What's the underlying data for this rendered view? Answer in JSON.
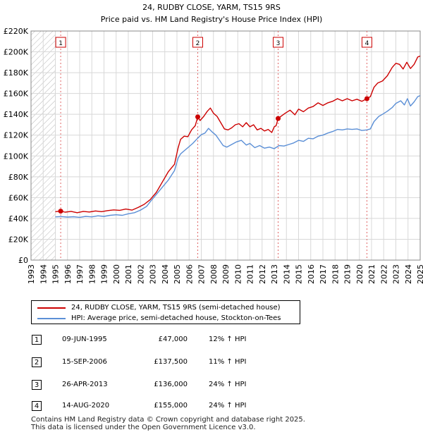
{
  "chart_data": {
    "type": "line",
    "title": "24, RUDBY CLOSE, YARM, TS15 9RS",
    "subtitle": "Price paid vs. HM Land Registry's House Price Index (HPI)",
    "xlim": [
      1993,
      2025
    ],
    "ylim": [
      0,
      220000
    ],
    "x_ticks": [
      1993,
      1994,
      1995,
      1996,
      1997,
      1998,
      1999,
      2000,
      2001,
      2002,
      2003,
      2004,
      2005,
      2006,
      2007,
      2008,
      2009,
      2010,
      2011,
      2012,
      2013,
      2014,
      2015,
      2016,
      2017,
      2018,
      2019,
      2020,
      2021,
      2022,
      2023,
      2024,
      2025
    ],
    "y_ticks": [
      {
        "value": 0,
        "label": "£0"
      },
      {
        "value": 20000,
        "label": "£20K"
      },
      {
        "value": 40000,
        "label": "£40K"
      },
      {
        "value": 60000,
        "label": "£60K"
      },
      {
        "value": 80000,
        "label": "£80K"
      },
      {
        "value": 100000,
        "label": "£100K"
      },
      {
        "value": 120000,
        "label": "£120K"
      },
      {
        "value": 140000,
        "label": "£140K"
      },
      {
        "value": 160000,
        "label": "£160K"
      },
      {
        "value": 180000,
        "label": "£180K"
      },
      {
        "value": 200000,
        "label": "£200K"
      },
      {
        "value": 220000,
        "label": "£220K"
      }
    ],
    "hatched_range_end": 1995.0,
    "grid": true,
    "series": [
      {
        "name": "24, RUDBY CLOSE, YARM, TS15 9RS (semi-detached house)",
        "color": "#cc0000",
        "points": [
          [
            1995.0,
            46500
          ],
          [
            1995.44,
            47000
          ],
          [
            1995.8,
            46000
          ],
          [
            1996.3,
            46800
          ],
          [
            1996.8,
            45500
          ],
          [
            1997.3,
            46800
          ],
          [
            1997.8,
            46200
          ],
          [
            1998.3,
            47200
          ],
          [
            1998.8,
            46500
          ],
          [
            1999.3,
            47500
          ],
          [
            1999.8,
            48200
          ],
          [
            2000.3,
            47800
          ],
          [
            2000.8,
            49000
          ],
          [
            2001.3,
            48000
          ],
          [
            2001.8,
            50500
          ],
          [
            2002.3,
            53500
          ],
          [
            2002.8,
            58000
          ],
          [
            2003.3,
            65000
          ],
          [
            2003.8,
            75000
          ],
          [
            2004.3,
            85000
          ],
          [
            2004.8,
            92000
          ],
          [
            2005.1,
            108000
          ],
          [
            2005.3,
            116000
          ],
          [
            2005.6,
            119000
          ],
          [
            2005.9,
            118500
          ],
          [
            2006.2,
            125000
          ],
          [
            2006.5,
            129000
          ],
          [
            2006.71,
            137500
          ],
          [
            2006.9,
            134000
          ],
          [
            2007.2,
            138000
          ],
          [
            2007.5,
            143000
          ],
          [
            2007.75,
            146000
          ],
          [
            2008.0,
            141000
          ],
          [
            2008.3,
            138000
          ],
          [
            2008.6,
            132000
          ],
          [
            2008.9,
            126000
          ],
          [
            2009.2,
            125000
          ],
          [
            2009.5,
            127000
          ],
          [
            2009.8,
            130000
          ],
          [
            2010.1,
            131000
          ],
          [
            2010.4,
            128000
          ],
          [
            2010.7,
            132000
          ],
          [
            2011.0,
            128000
          ],
          [
            2011.3,
            130000
          ],
          [
            2011.6,
            125000
          ],
          [
            2011.9,
            126500
          ],
          [
            2012.2,
            124000
          ],
          [
            2012.5,
            125500
          ],
          [
            2012.8,
            122500
          ],
          [
            2013.0,
            128000
          ],
          [
            2013.15,
            129000
          ],
          [
            2013.32,
            136000
          ],
          [
            2013.6,
            138500
          ],
          [
            2013.9,
            141000
          ],
          [
            2014.3,
            144000
          ],
          [
            2014.7,
            139500
          ],
          [
            2015.0,
            145000
          ],
          [
            2015.4,
            142500
          ],
          [
            2015.8,
            146000
          ],
          [
            2016.2,
            147500
          ],
          [
            2016.6,
            151000
          ],
          [
            2017.0,
            148500
          ],
          [
            2017.4,
            151000
          ],
          [
            2017.8,
            152500
          ],
          [
            2018.2,
            155000
          ],
          [
            2018.6,
            153000
          ],
          [
            2019.0,
            155000
          ],
          [
            2019.4,
            153000
          ],
          [
            2019.8,
            154500
          ],
          [
            2020.2,
            152500
          ],
          [
            2020.62,
            155000
          ],
          [
            2020.9,
            157000
          ],
          [
            2021.2,
            166000
          ],
          [
            2021.5,
            170000
          ],
          [
            2021.9,
            172000
          ],
          [
            2022.3,
            177000
          ],
          [
            2022.7,
            185000
          ],
          [
            2023.0,
            189000
          ],
          [
            2023.3,
            188000
          ],
          [
            2023.6,
            183500
          ],
          [
            2023.9,
            190000
          ],
          [
            2024.2,
            184000
          ],
          [
            2024.5,
            188000
          ],
          [
            2024.8,
            195000
          ],
          [
            2025.0,
            196000
          ]
        ]
      },
      {
        "name": "HPI: Average price, semi-detached house, Stockton-on-Tees",
        "color": "#5b8fd6",
        "points": [
          [
            1995.0,
            41500
          ],
          [
            1995.5,
            41800
          ],
          [
            1996.0,
            41300
          ],
          [
            1996.5,
            41600
          ],
          [
            1997.0,
            41000
          ],
          [
            1997.5,
            42000
          ],
          [
            1998.0,
            41500
          ],
          [
            1998.5,
            42500
          ],
          [
            1999.0,
            42000
          ],
          [
            1999.5,
            43000
          ],
          [
            2000.0,
            43500
          ],
          [
            2000.5,
            43000
          ],
          [
            2001.0,
            44500
          ],
          [
            2001.5,
            45500
          ],
          [
            2002.0,
            48000
          ],
          [
            2002.5,
            51500
          ],
          [
            2002.8,
            56000
          ],
          [
            2003.3,
            63000
          ],
          [
            2003.8,
            70000
          ],
          [
            2004.3,
            77000
          ],
          [
            2004.8,
            86000
          ],
          [
            2005.1,
            98000
          ],
          [
            2005.3,
            102000
          ],
          [
            2005.6,
            105000
          ],
          [
            2005.9,
            108000
          ],
          [
            2006.3,
            112000
          ],
          [
            2006.7,
            117000
          ],
          [
            2007.0,
            120500
          ],
          [
            2007.3,
            122000
          ],
          [
            2007.6,
            126500
          ],
          [
            2007.9,
            123000
          ],
          [
            2008.2,
            120000
          ],
          [
            2008.5,
            115000
          ],
          [
            2008.8,
            110000
          ],
          [
            2009.1,
            108500
          ],
          [
            2009.5,
            111000
          ],
          [
            2009.9,
            113500
          ],
          [
            2010.3,
            115000
          ],
          [
            2010.7,
            110500
          ],
          [
            2011.0,
            112000
          ],
          [
            2011.4,
            108000
          ],
          [
            2011.8,
            110000
          ],
          [
            2012.2,
            107500
          ],
          [
            2012.6,
            108500
          ],
          [
            2013.0,
            107000
          ],
          [
            2013.4,
            110000
          ],
          [
            2013.8,
            109500
          ],
          [
            2014.2,
            111000
          ],
          [
            2014.6,
            112500
          ],
          [
            2015.0,
            115000
          ],
          [
            2015.4,
            114000
          ],
          [
            2015.8,
            117000
          ],
          [
            2016.2,
            116500
          ],
          [
            2016.6,
            119000
          ],
          [
            2017.0,
            120000
          ],
          [
            2017.4,
            122000
          ],
          [
            2017.8,
            123500
          ],
          [
            2018.2,
            125500
          ],
          [
            2018.6,
            125000
          ],
          [
            2019.0,
            126000
          ],
          [
            2019.4,
            125500
          ],
          [
            2019.8,
            126000
          ],
          [
            2020.2,
            124500
          ],
          [
            2020.62,
            125000
          ],
          [
            2020.9,
            126000
          ],
          [
            2021.2,
            133000
          ],
          [
            2021.6,
            138000
          ],
          [
            2021.9,
            140000
          ],
          [
            2022.3,
            143000
          ],
          [
            2022.7,
            146500
          ],
          [
            2023.0,
            150500
          ],
          [
            2023.4,
            153000
          ],
          [
            2023.7,
            149000
          ],
          [
            2023.95,
            155000
          ],
          [
            2024.2,
            148000
          ],
          [
            2024.5,
            152000
          ],
          [
            2024.8,
            157000
          ],
          [
            2025.0,
            158000
          ]
        ]
      }
    ],
    "sale_markers": [
      {
        "label": "1",
        "x": 1995.44,
        "y": 47000
      },
      {
        "label": "2",
        "x": 2006.71,
        "y": 137500
      },
      {
        "label": "3",
        "x": 2013.32,
        "y": 136000
      },
      {
        "label": "4",
        "x": 2020.62,
        "y": 155000
      }
    ]
  },
  "legend": {
    "property": "24, RUDBY CLOSE, YARM, TS15 9RS (semi-detached house)",
    "hpi": "HPI: Average price, semi-detached house, Stockton-on-Tees"
  },
  "sales": [
    {
      "marker": "1",
      "date": "09-JUN-1995",
      "price": "£47,000",
      "hpi": "12% ↑ HPI"
    },
    {
      "marker": "2",
      "date": "15-SEP-2006",
      "price": "£137,500",
      "hpi": "11% ↑ HPI"
    },
    {
      "marker": "3",
      "date": "26-APR-2013",
      "price": "£136,000",
      "hpi": "24% ↑ HPI"
    },
    {
      "marker": "4",
      "date": "14-AUG-2020",
      "price": "£155,000",
      "hpi": "24% ↑ HPI"
    }
  ],
  "footer": {
    "line1": "Contains HM Land Registry data © Crown copyright and database right 2025.",
    "line2": "This data is licensed under the Open Government Licence v3.0."
  },
  "colors": {
    "property": "#cc0000",
    "hpi": "#5b8fd6",
    "grid": "#d8d8d8",
    "axis": "#888888"
  }
}
